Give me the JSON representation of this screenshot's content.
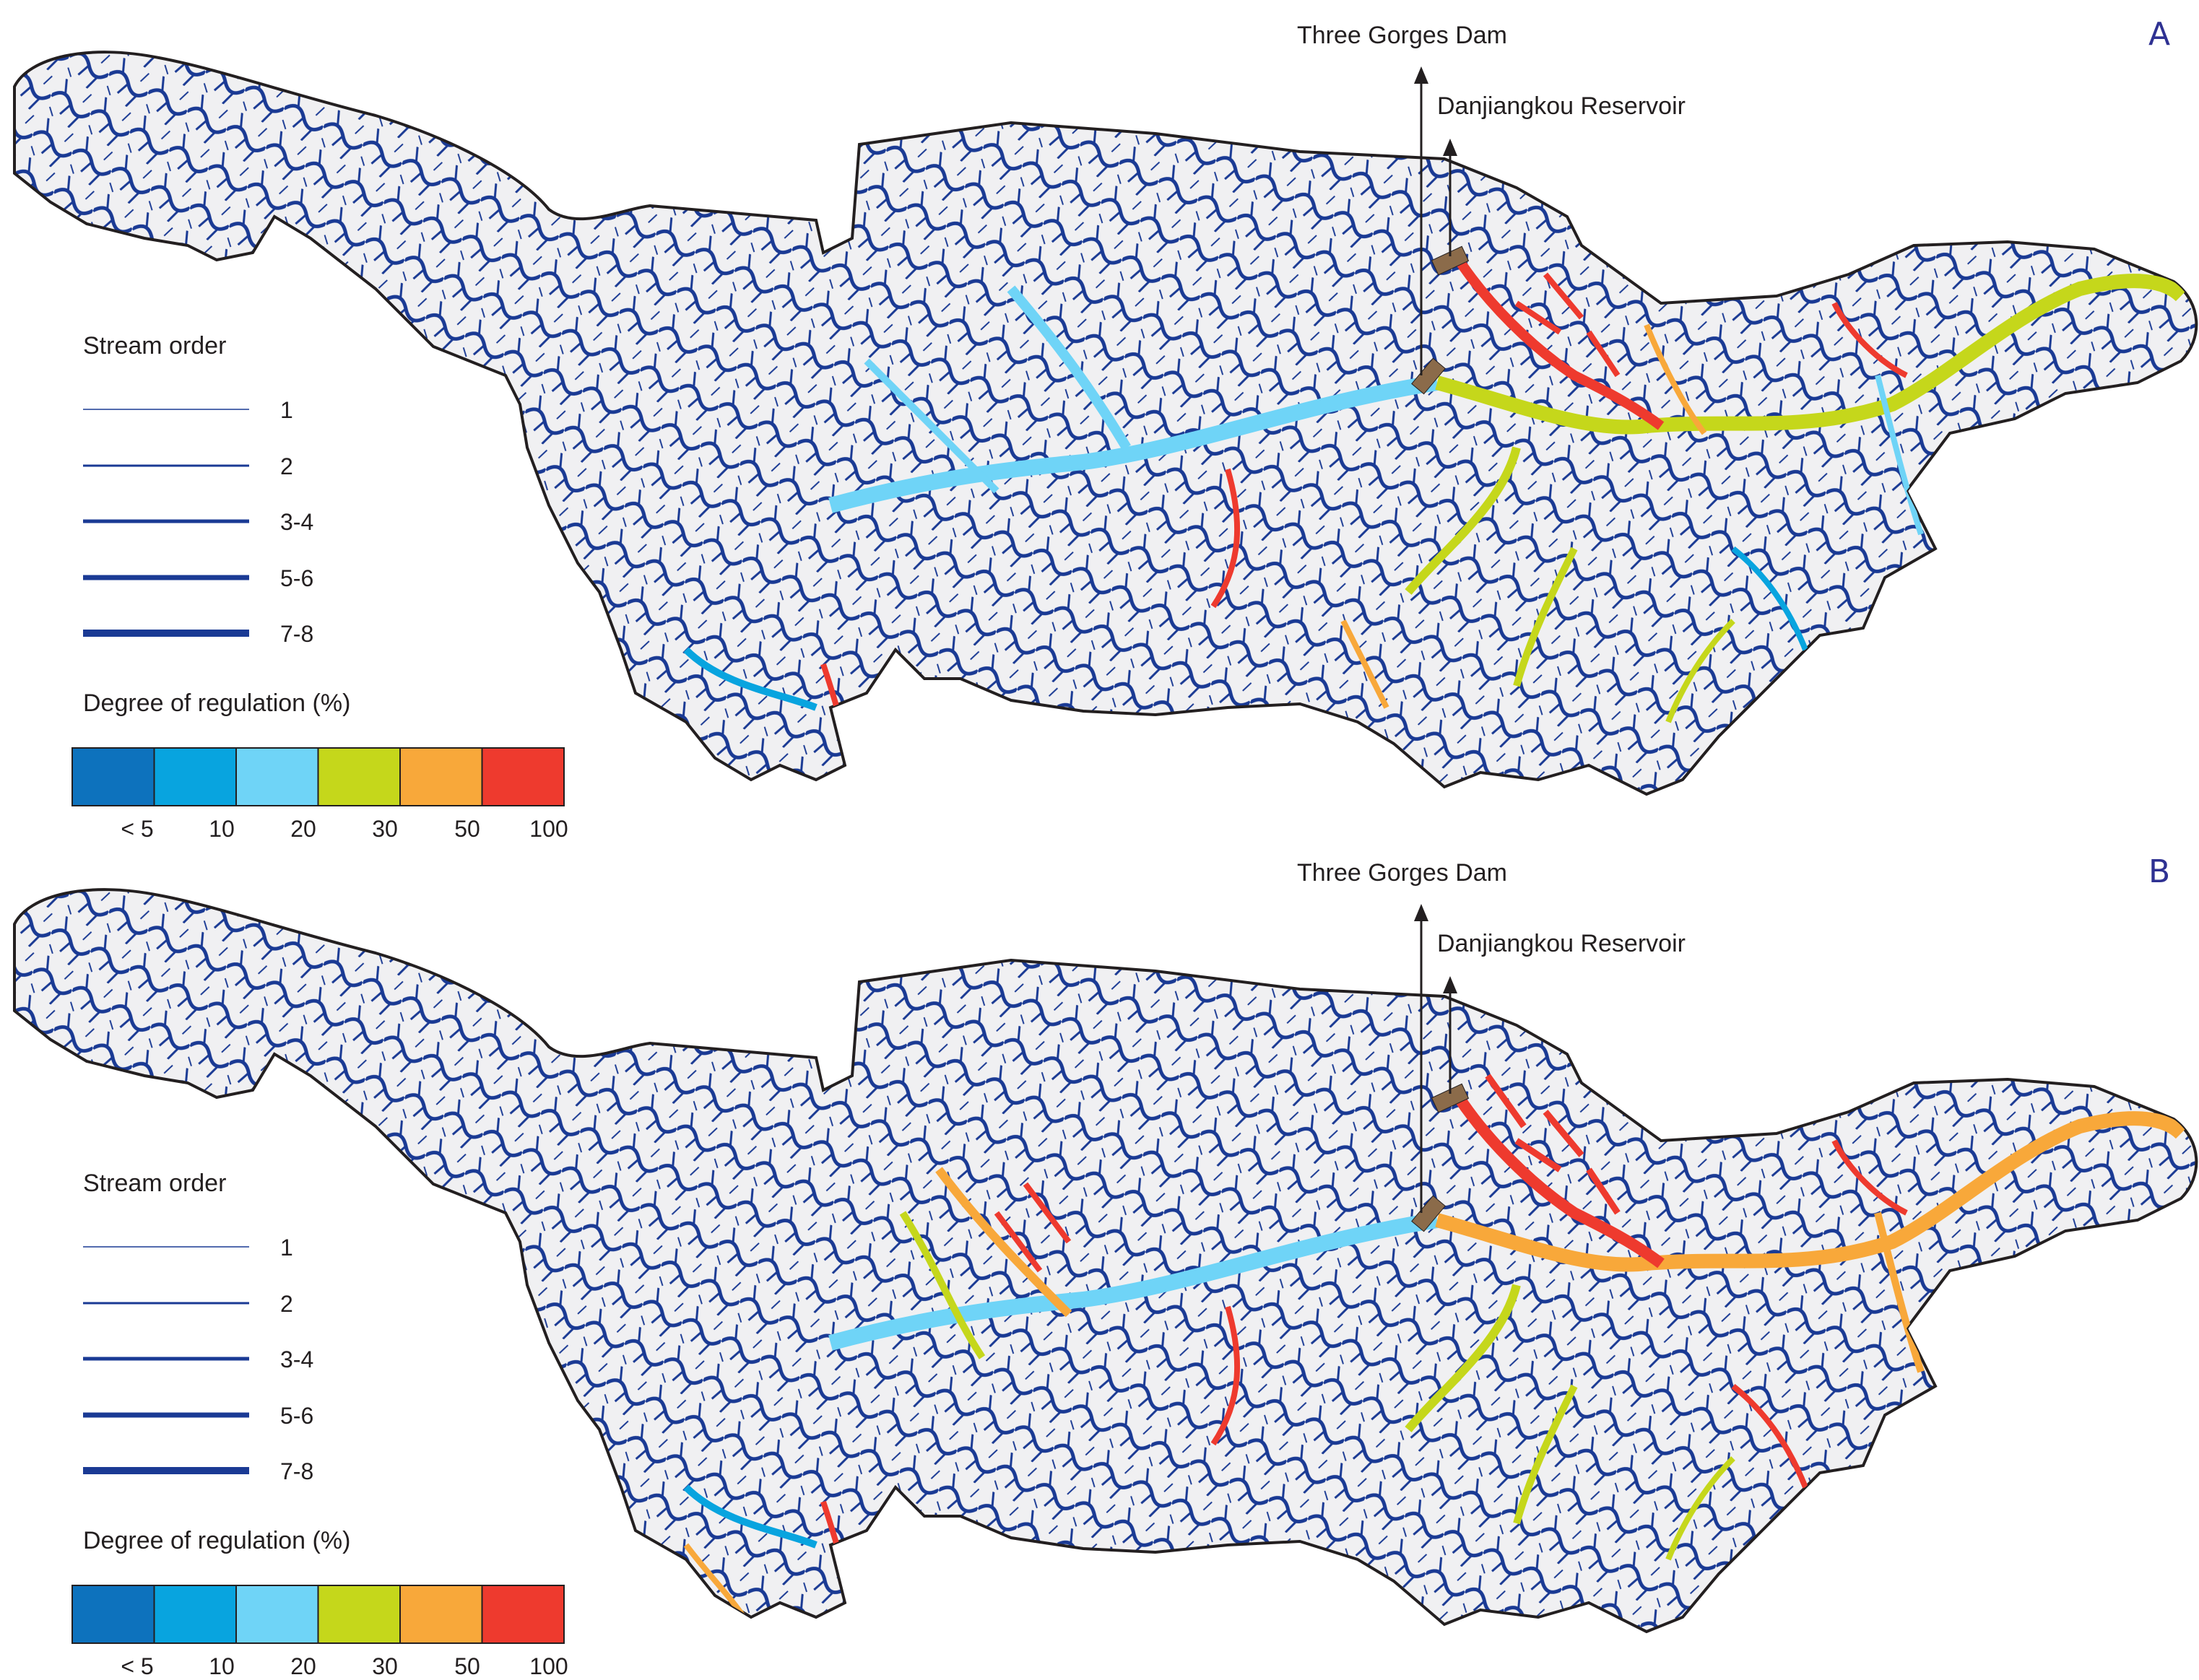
{
  "colors": {
    "basin_fill": "#f0f0f2",
    "basin_outline": "#231f20",
    "river_blue": "#1a3a94",
    "dam_marker": "#8b6b4a",
    "panel_letter": "#2e3192"
  },
  "legend": {
    "stream_order_title": "Stream order",
    "stream_order_items": [
      {
        "label": "1"
      },
      {
        "label": "2"
      },
      {
        "label": "3-4"
      },
      {
        "label": "5-6"
      },
      {
        "label": "7-8"
      }
    ],
    "regulation_title": "Degree of regulation (%)",
    "regulation_bins": [
      {
        "color": "#0d72bd",
        "label": "< 5"
      },
      {
        "color": "#08a4df",
        "label": "10"
      },
      {
        "color": "#6fd4f7",
        "label": "20"
      },
      {
        "color": "#c5d71b",
        "label": "30"
      },
      {
        "color": "#f8a83a",
        "label": "50"
      },
      {
        "color": "#ee3a2e",
        "label": "100"
      }
    ]
  },
  "panels": [
    {
      "letter": "A",
      "dam_label": "Three Gorges Dam",
      "reservoir_label": "Danjiangkou Reservoir"
    },
    {
      "letter": "B",
      "dam_label": "Three Gorges Dam",
      "reservoir_label": "Danjiangkou Reservoir"
    }
  ]
}
